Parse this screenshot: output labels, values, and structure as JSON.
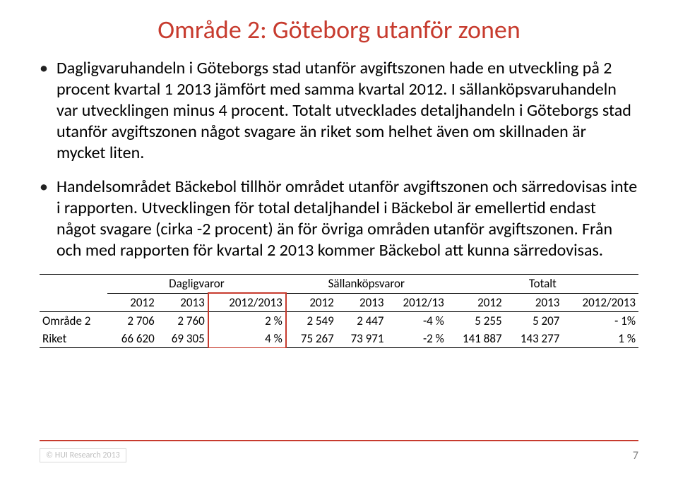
{
  "colors": {
    "accent": "#c73b2e",
    "text": "#222222",
    "footer_gray": "#bfbfbf",
    "border_light": "#d9d9d9"
  },
  "title": "Område 2: Göteborg utanför zonen",
  "bullets": [
    "Dagligvaruhandeln i Göteborgs stad utanför avgiftszonen hade en utveckling på 2 procent kvartal 1 2013 jämfört med samma kvartal 2012. I sällanköpsvaruhandeln var utvecklingen minus 4 procent. Totalt utvecklades detaljhandeln i Göteborgs stad utanför avgiftszonen något svagare än riket som helhet även om skillnaden är mycket liten.",
    "Handelsområdet Bäckebol tillhör området utanför avgiftszonen och särredovisas inte i rapporten. Utvecklingen för total detaljhandel i Bäckebol är emellertid endast något svagare (cirka -2 procent) än för övriga områden utanför avgiftszonen. Från och med rapporten för kvartal 2 2013 kommer Bäckebol att kunna särredovisas."
  ],
  "table": {
    "group_headers": [
      "Dagligvaror",
      "Sällanköpsvaror",
      "Totalt"
    ],
    "sub_headers": [
      "2012",
      "2013",
      "2012/2013",
      "2012",
      "2013",
      "2012/13",
      "2012",
      "2013",
      "2012/2013"
    ],
    "rows": [
      {
        "label": "Område 2",
        "cells": [
          "2 706",
          "2 760",
          "2 %",
          "2 549",
          "2 447",
          "-4 %",
          "5 255",
          "5 207",
          "- 1%"
        ]
      },
      {
        "label": "Riket",
        "cells": [
          "66 620",
          "69 305",
          "4 %",
          "75 267",
          "73 971",
          "-2 %",
          "141 887",
          "143 277",
          "1 %"
        ]
      }
    ],
    "highlight_col_index": 2
  },
  "footer": {
    "copyright": "© HUI Research 2013",
    "page": "7"
  }
}
